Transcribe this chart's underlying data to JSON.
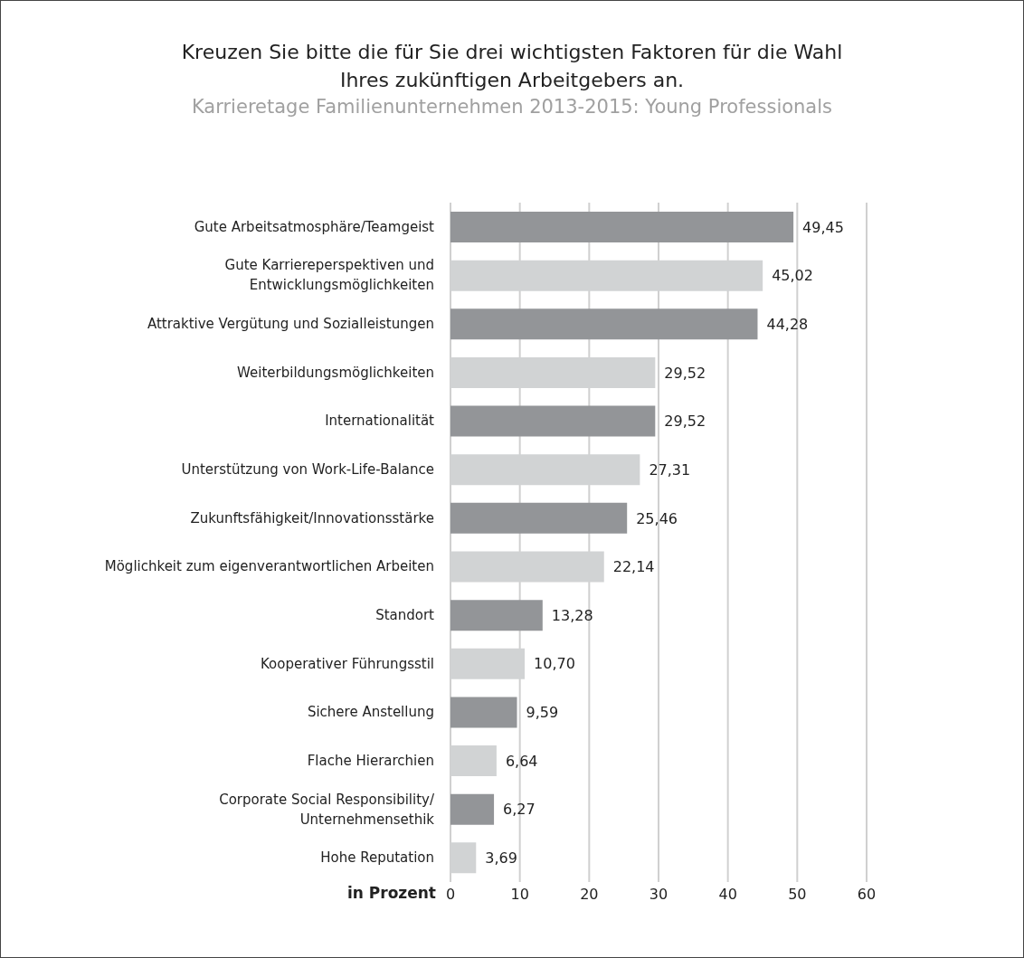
{
  "chart_data": {
    "type": "bar",
    "orientation": "horizontal",
    "title": "Kreuzen Sie bitte die für Sie drei wichtigsten Faktoren für die Wahl Ihres zukünftigen Arbeitgebers an.",
    "subtitle": "Karrieretage Familienunternehmen 2013-2015: Young Professionals",
    "xlabel": "in Prozent",
    "categories": [
      "Gute Arbeitsatmosphäre/Teamgeist",
      "Gute Karriereperspektiven und\nEntwicklungsmöglichkeiten",
      "Attraktive Vergütung und Sozialleistungen",
      "Weiterbildungsmöglichkeiten",
      "Internationalität",
      "Unterstützung von Work-Life-Balance",
      "Zukunftsfähigkeit/Innovationsstärke",
      "Möglichkeit zum eigenverantwortlichen Arbeiten",
      "Standort",
      "Kooperativer Führungsstil",
      "Sichere Anstellung",
      "Flache Hierarchien",
      "Corporate Social Responsibility/\nUnternehmensethik",
      "Hohe Reputation"
    ],
    "values": [
      49.45,
      45.02,
      44.28,
      29.52,
      29.52,
      27.31,
      25.46,
      22.14,
      13.28,
      10.7,
      9.59,
      6.64,
      6.27,
      3.69
    ],
    "value_labels": [
      "49,45",
      "45,02",
      "44,28",
      "29,52",
      "29,52",
      "27,31",
      "25,46",
      "22,14",
      "13,28",
      "10,70",
      "9,59",
      "6,64",
      "6,27",
      "3,69"
    ],
    "colors": [
      "#939598",
      "#d1d3d4",
      "#939598",
      "#d1d3d4",
      "#939598",
      "#d1d3d4",
      "#939598",
      "#d1d3d4",
      "#939598",
      "#d1d3d4",
      "#939598",
      "#d1d3d4",
      "#939598",
      "#d1d3d4"
    ],
    "xlim": [
      0,
      60
    ],
    "xticks": [
      0,
      10,
      20,
      30,
      40,
      50,
      60
    ],
    "grid": "x"
  }
}
